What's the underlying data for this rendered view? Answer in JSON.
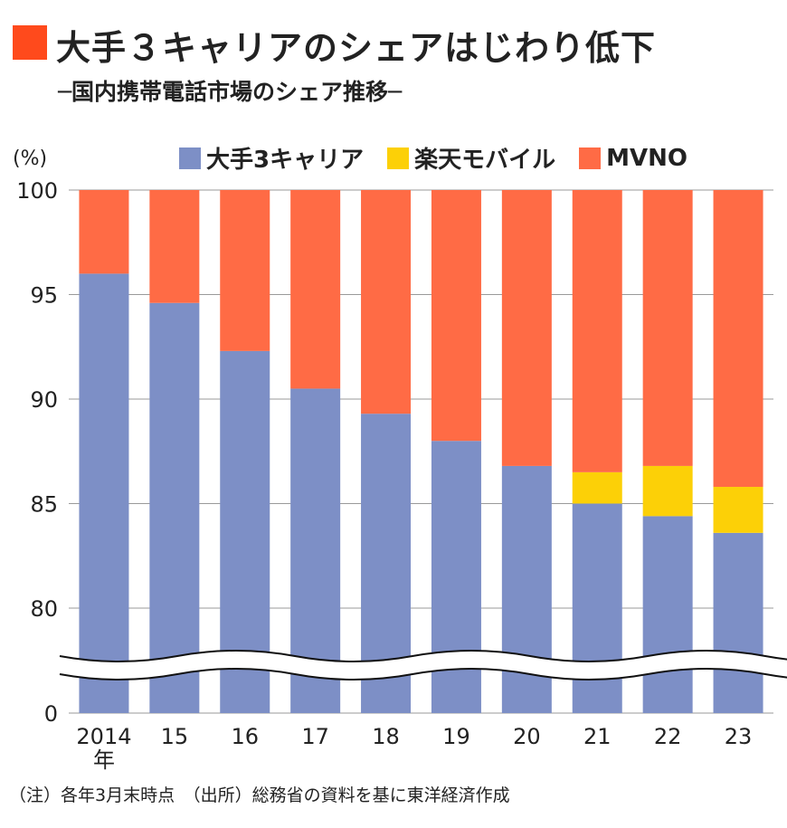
{
  "header": {
    "title": "大手３キャリアのシェアはじわり低下",
    "subtitle": "─国内携帯電話市場のシェア推移─"
  },
  "legend": [
    {
      "label": "大手3キャリア",
      "color": "#7d8fc6"
    },
    {
      "label": "楽天モバイル",
      "color": "#fcd007"
    },
    {
      "label": "MVNO",
      "color": "#ff6b45"
    }
  ],
  "unit_label": "(%)",
  "footnote": "（注）各年3月末時点　（出所）総務省の資料を基に東洋経済作成",
  "chart_data": {
    "type": "bar",
    "stacked": true,
    "categories": [
      "2014\n年",
      "15",
      "16",
      "17",
      "18",
      "19",
      "20",
      "21",
      "22",
      "23"
    ],
    "series": [
      {
        "name": "大手3キャリア",
        "color": "#7d8fc6",
        "values": [
          96.0,
          94.6,
          92.3,
          90.5,
          89.3,
          88.0,
          86.8,
          85.0,
          84.4,
          83.6
        ]
      },
      {
        "name": "楽天モバイル",
        "color": "#fcd007",
        "values": [
          0,
          0,
          0,
          0,
          0,
          0,
          0,
          1.5,
          2.4,
          2.2
        ]
      },
      {
        "name": "MVNO",
        "color": "#ff6b45",
        "values": [
          4.0,
          5.4,
          7.7,
          9.5,
          10.7,
          12.0,
          13.2,
          13.5,
          13.2,
          14.2
        ]
      }
    ],
    "ylim": [
      80,
      100
    ],
    "yticks": [
      "100",
      "95",
      "90",
      "85",
      "80",
      "0"
    ],
    "axis_break": true,
    "grid": true
  }
}
